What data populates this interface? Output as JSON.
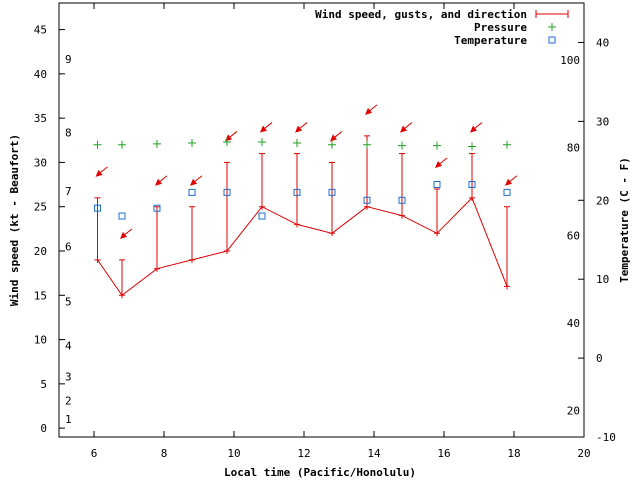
{
  "chart_data": {
    "type": "line",
    "xlabel": "Local time (Pacific/Honolulu)",
    "ylabel_left": "Wind speed (kt - Beaufort)",
    "ylabel_right": "Temperature (C - F)",
    "xlim": [
      5,
      20
    ],
    "ylim_left": [
      -1,
      48
    ],
    "ylim_celsius": [
      -10,
      45
    ],
    "ylim_fahrenheit": [
      14,
      113
    ],
    "x_ticks": [
      "6",
      "8",
      "10",
      "12",
      "14",
      "16",
      "18",
      "20"
    ],
    "y_ticks_knots": [
      "0",
      "5",
      "10",
      "15",
      "20",
      "25",
      "30",
      "35",
      "40",
      "45"
    ],
    "beaufort_ticks": [
      "1",
      "2",
      "3",
      "4",
      "5",
      "6",
      "7",
      "8",
      "9"
    ],
    "celsius_ticks": [
      "-10",
      "0",
      "10",
      "20",
      "30",
      "40"
    ],
    "fahrenheit_ticks": [
      "20",
      "40",
      "60",
      "80",
      "100"
    ],
    "legend": {
      "position": "top-right",
      "wind": "Wind speed, gusts, and direction",
      "pressure": "Pressure",
      "temperature": "Temperature"
    },
    "colors": {
      "wind": "#e00000",
      "pressure": "#20a020",
      "temperature": "#1e6ecc"
    },
    "series": {
      "wind": [
        {
          "x": 6.1,
          "speed": 19,
          "gust": 26
        },
        {
          "x": 6.8,
          "speed": 15,
          "gust": 19
        },
        {
          "x": 7.8,
          "speed": 18,
          "gust": 25
        },
        {
          "x": 8.8,
          "speed": 19,
          "gust": 25
        },
        {
          "x": 9.8,
          "speed": 20,
          "gust": 30
        },
        {
          "x": 10.8,
          "speed": 25,
          "gust": 31
        },
        {
          "x": 11.8,
          "speed": 23,
          "gust": 31
        },
        {
          "x": 12.8,
          "speed": 22,
          "gust": 30
        },
        {
          "x": 13.8,
          "speed": 25,
          "gust": 33
        },
        {
          "x": 14.8,
          "speed": 24,
          "gust": 31
        },
        {
          "x": 15.8,
          "speed": 22,
          "gust": 27
        },
        {
          "x": 16.8,
          "speed": 26,
          "gust": 31
        },
        {
          "x": 17.8,
          "speed": 16,
          "gust": 25
        }
      ],
      "pressure": [
        {
          "x": 6.1,
          "y": 32
        },
        {
          "x": 6.8,
          "y": 32
        },
        {
          "x": 7.8,
          "y": 32.1
        },
        {
          "x": 8.8,
          "y": 32.2
        },
        {
          "x": 9.8,
          "y": 32.3
        },
        {
          "x": 10.8,
          "y": 32.3
        },
        {
          "x": 11.8,
          "y": 32.2
        },
        {
          "x": 12.8,
          "y": 32
        },
        {
          "x": 13.8,
          "y": 32
        },
        {
          "x": 14.8,
          "y": 31.9
        },
        {
          "x": 15.8,
          "y": 31.9
        },
        {
          "x": 16.8,
          "y": 31.8
        },
        {
          "x": 17.8,
          "y": 32
        }
      ],
      "temperature_c": [
        {
          "x": 6.1,
          "y": 19
        },
        {
          "x": 6.8,
          "y": 18
        },
        {
          "x": 7.8,
          "y": 19
        },
        {
          "x": 8.8,
          "y": 21
        },
        {
          "x": 9.8,
          "y": 21
        },
        {
          "x": 10.8,
          "y": 18
        },
        {
          "x": 11.8,
          "y": 21
        },
        {
          "x": 12.8,
          "y": 21
        },
        {
          "x": 13.8,
          "y": 20
        },
        {
          "x": 14.8,
          "y": 20
        },
        {
          "x": 15.8,
          "y": 22
        },
        {
          "x": 16.8,
          "y": 22
        },
        {
          "x": 17.8,
          "y": 21
        }
      ],
      "direction_deg": [
        45,
        45,
        45,
        45,
        45,
        45,
        45,
        45,
        45,
        45,
        45,
        45,
        45
      ]
    }
  }
}
